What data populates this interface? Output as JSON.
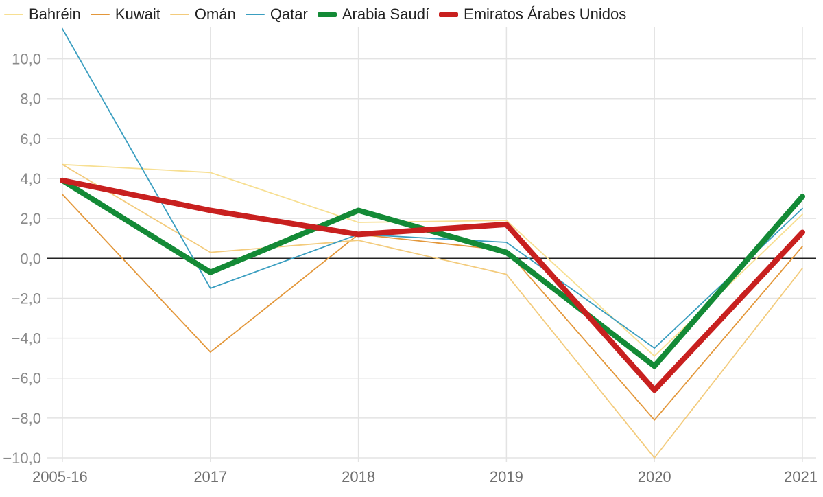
{
  "chart_data": {
    "type": "line",
    "categories": [
      "2005-16",
      "2017",
      "2018",
      "2019",
      "2020",
      "2021"
    ],
    "ylim": [
      -10,
      11.5
    ],
    "yticks": [
      -10,
      -8,
      -6,
      -4,
      -2,
      0,
      2,
      4,
      6,
      8,
      10
    ],
    "ytick_labels": [
      "−10,0",
      "−8,0",
      "−6,0",
      "−4,0",
      "−2,0",
      "0,0",
      "2,0",
      "4,0",
      "6,0",
      "8,0",
      "10,0"
    ],
    "grid": true,
    "legend_position": "top",
    "series": [
      {
        "name": "Bahréin",
        "color": "#f7df92",
        "emphasis": "thin",
        "values": [
          4.7,
          4.3,
          1.8,
          1.9,
          -4.9,
          2.2
        ]
      },
      {
        "name": "Kuwait",
        "color": "#e3973a",
        "emphasis": "thin",
        "values": [
          3.2,
          -4.7,
          1.2,
          0.4,
          -8.1,
          0.6
        ]
      },
      {
        "name": "Omán",
        "color": "#f3cb7c",
        "emphasis": "thin",
        "values": [
          4.7,
          0.3,
          0.9,
          -0.8,
          -10.0,
          -0.5
        ]
      },
      {
        "name": "Qatar",
        "color": "#3a9ec0",
        "emphasis": "thin",
        "values": [
          11.5,
          -1.5,
          1.2,
          0.8,
          -4.5,
          2.5
        ]
      },
      {
        "name": "Arabia Saudí",
        "color": "#138a36",
        "emphasis": "thick",
        "values": [
          3.9,
          -0.7,
          2.4,
          0.3,
          -5.4,
          3.1
        ]
      },
      {
        "name": "Emiratos Árabes Unidos",
        "color": "#c8201f",
        "emphasis": "thick",
        "values": [
          3.9,
          2.4,
          1.2,
          1.7,
          -6.6,
          1.3
        ]
      }
    ]
  }
}
